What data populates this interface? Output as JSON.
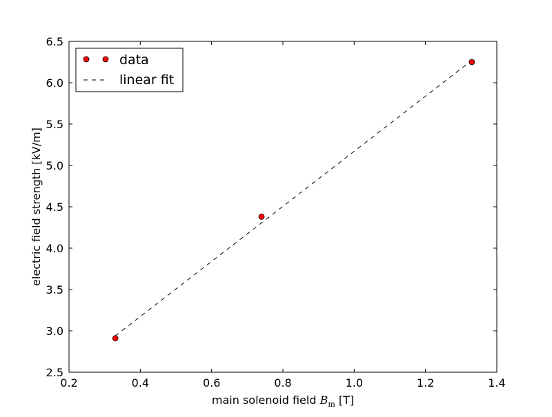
{
  "chart_data": {
    "type": "scatter",
    "xlabel_prefix": "main solenoid field ",
    "xlabel_symbol": "B",
    "xlabel_subscript": "m",
    "xlabel_suffix": " [T]",
    "ylabel": "electric field strength [kV/m]",
    "xlim": [
      0.2,
      1.4
    ],
    "ylim": [
      2.5,
      6.5
    ],
    "xticks": [
      0.2,
      0.4,
      0.6,
      0.8,
      1.0,
      1.2,
      1.4
    ],
    "xtick_labels": [
      "0.2",
      "0.4",
      "0.6",
      "0.8",
      "1.0",
      "1.2",
      "1.4"
    ],
    "yticks": [
      2.5,
      3.0,
      3.5,
      4.0,
      4.5,
      5.0,
      5.5,
      6.0,
      6.5
    ],
    "ytick_labels": [
      "2.5",
      "3.0",
      "3.5",
      "4.0",
      "4.5",
      "5.0",
      "5.5",
      "6.0",
      "6.5"
    ],
    "grid": false,
    "legend_position": "top-left",
    "series": [
      {
        "name": "data",
        "kind": "markers",
        "color": "#ff0000",
        "x": [
          0.33,
          0.74,
          1.33
        ],
        "y": [
          2.91,
          4.38,
          6.25
        ]
      },
      {
        "name": "linear fit",
        "kind": "dashed-line",
        "color": "#000000",
        "x": [
          0.33,
          1.33
        ],
        "y": [
          2.94,
          6.27
        ]
      }
    ]
  }
}
